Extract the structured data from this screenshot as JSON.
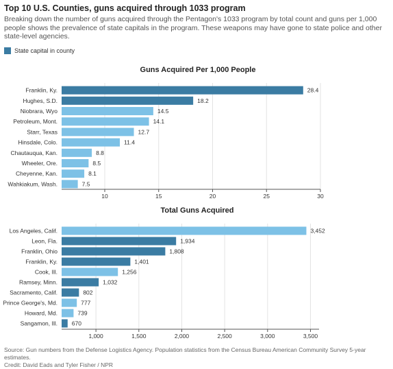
{
  "title": "Top 10 U.S. Counties, guns acquired through 1033 program",
  "subtitle": "Breaking down the number of guns acquired through the Pentagon's 1033 program by total count and guns per 1,000 people shows the prevalence of state capitals in the program. These weapons may have gone to state police and other state-level agencies.",
  "legend": {
    "label": "State capital in county",
    "color": "#3b7ca3"
  },
  "colors": {
    "capital": "#3b7ca3",
    "other": "#7dc1e6"
  },
  "footer": {
    "source": "Source: Gun numbers from the Defense Logistics Agency. Population statistics from the Census Bureau American Community Survey 5-year estimates.",
    "credit": "Credit: David Eads and Tyler Fisher / NPR"
  },
  "chart_data": [
    {
      "type": "bar",
      "orientation": "horizontal",
      "title": "Guns Acquired Per 1,000 People",
      "categories": [
        "Franklin, Ky.",
        "Hughes, S.D.",
        "Niobrara, Wyo",
        "Petroleum, Mont.",
        "Starr, Texas",
        "Hinsdale, Colo.",
        "Chautauqua, Kan.",
        "Wheeler, Ore.",
        "Cheyenne, Kan.",
        "Wahkiakum, Wash."
      ],
      "values": [
        28.4,
        18.2,
        14.5,
        14.1,
        12.7,
        11.4,
        8.8,
        8.5,
        8.1,
        7.5
      ],
      "value_labels": [
        "28.4",
        "18.2",
        "14.5",
        "14.1",
        "12.7",
        "11.4",
        "8.8",
        "8.5",
        "8.1",
        "7.5"
      ],
      "state_capital": [
        true,
        true,
        false,
        false,
        false,
        false,
        false,
        false,
        false,
        false
      ],
      "xlim": [
        6,
        30
      ],
      "xticks": [
        10,
        15,
        20,
        25,
        30
      ],
      "xtick_labels": [
        "10",
        "15",
        "20",
        "25",
        "30"
      ],
      "grid": true
    },
    {
      "type": "bar",
      "orientation": "horizontal",
      "title": "Total Guns Acquired",
      "categories": [
        "Los Angeles, Calif.",
        "Leon, Fla.",
        "Franklin, Ohio",
        "Franklin, Ky.",
        "Cook, Ill.",
        "Ramsey, Minn.",
        "Sacramento, Calif.",
        "Prince George's, Md.",
        "Howard, Md.",
        "Sangamon, Ill."
      ],
      "values": [
        3452,
        1934,
        1808,
        1401,
        1256,
        1032,
        802,
        777,
        739,
        670
      ],
      "value_labels": [
        "3,452",
        "1,934",
        "1,808",
        "1,401",
        "1,256",
        "1,032",
        "802",
        "777",
        "739",
        "670"
      ],
      "state_capital": [
        false,
        true,
        true,
        true,
        false,
        true,
        true,
        false,
        false,
        true
      ],
      "xlim": [
        600,
        3600
      ],
      "xticks": [
        1000,
        1500,
        2000,
        2500,
        3000,
        3500
      ],
      "xtick_labels": [
        "1,000",
        "1,500",
        "2,000",
        "2,500",
        "3,000",
        "3,500"
      ],
      "grid": true
    }
  ]
}
